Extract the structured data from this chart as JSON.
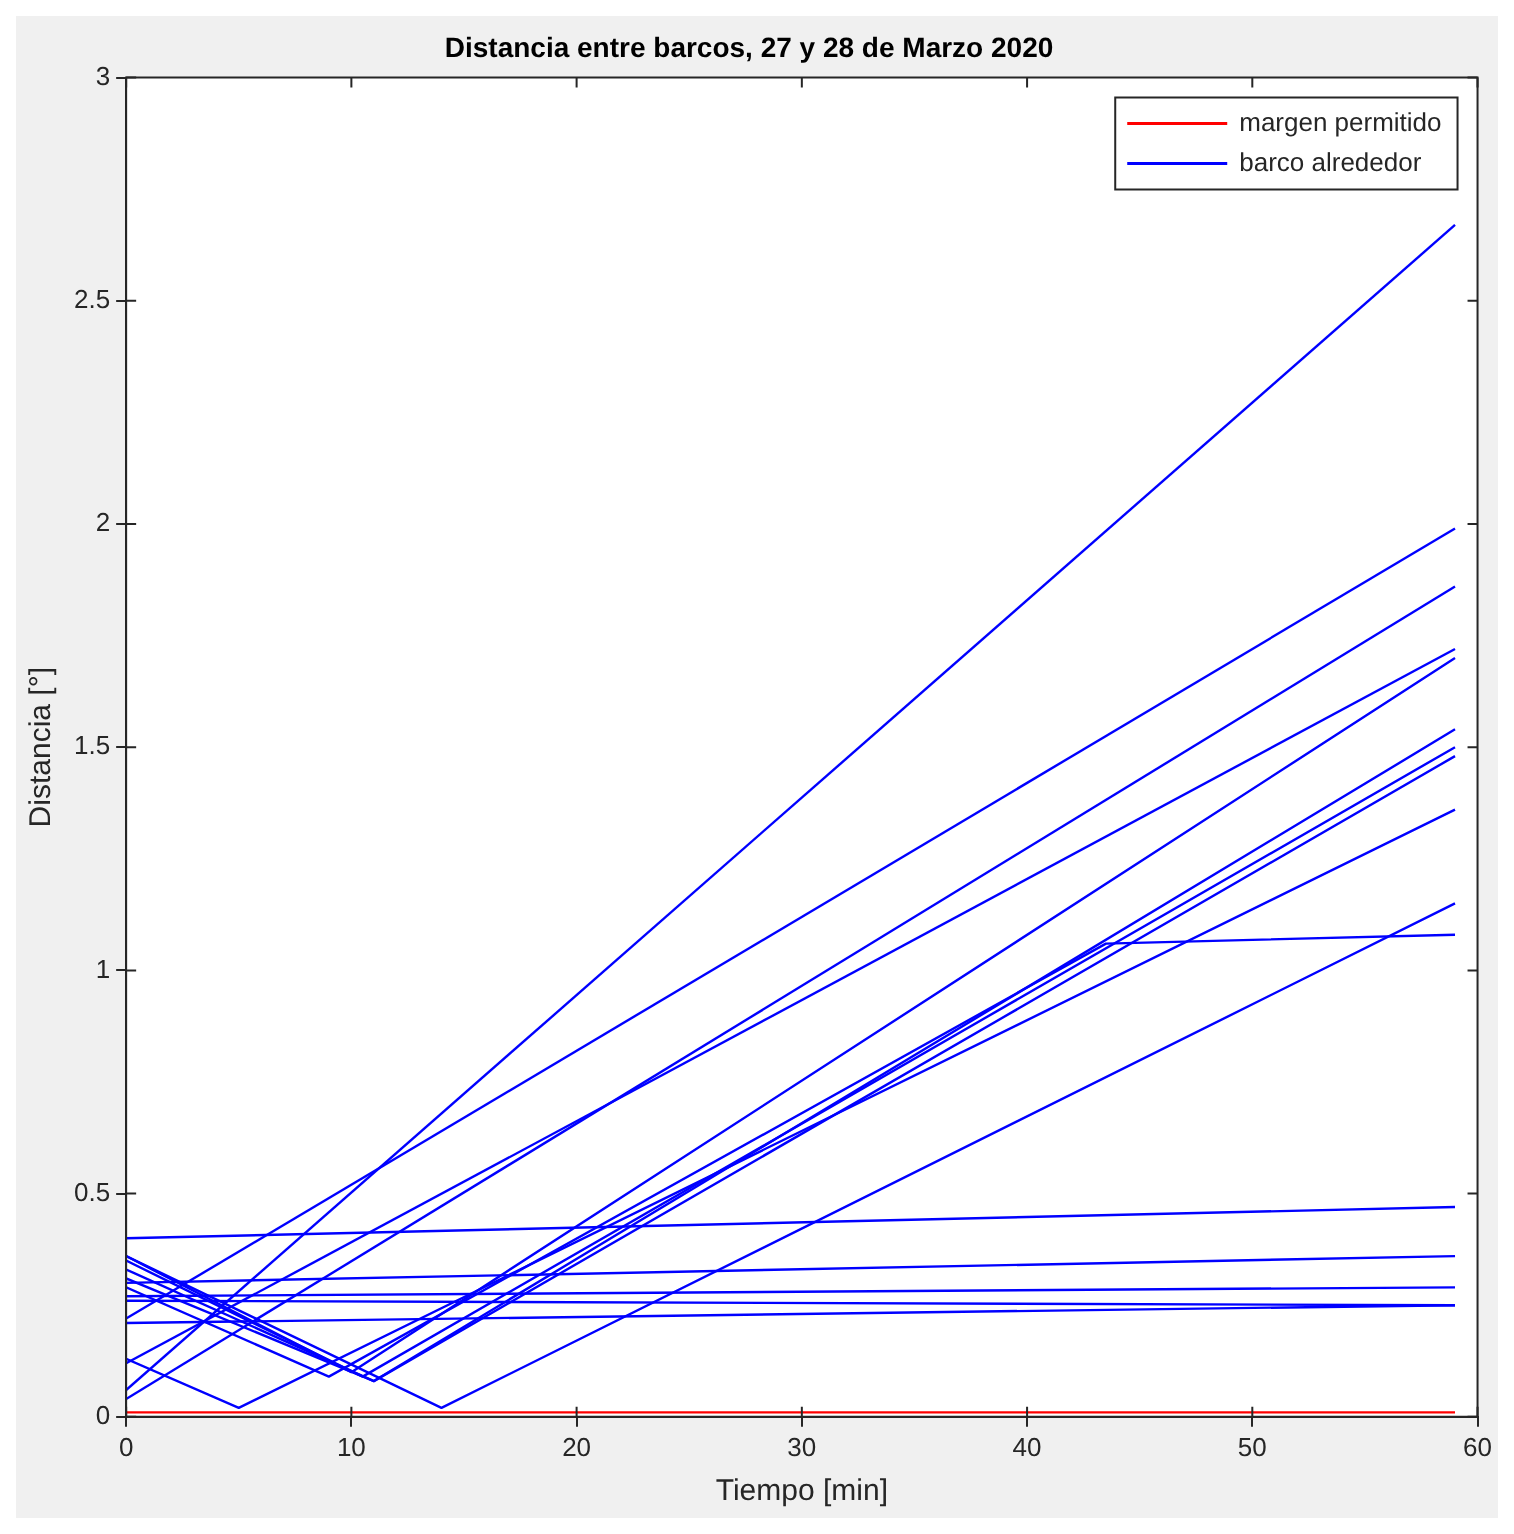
{
  "chart_data": {
    "type": "line",
    "title": "Distancia entre barcos, 27 y 28 de Marzo 2020",
    "xlabel": "Tiempo [min]",
    "ylabel": "Distancia [°]",
    "xlim": [
      0,
      60
    ],
    "xticks": [
      0,
      10,
      20,
      30,
      40,
      50,
      60
    ],
    "ylim": [
      0,
      3
    ],
    "yticks": [
      0,
      0.5,
      1,
      1.5,
      2,
      2.5,
      3
    ],
    "grid": false,
    "legend": "top right",
    "line_style": "solid",
    "marker": "none",
    "series": [
      {
        "name": "margen permitido",
        "color": "#ff0000",
        "x": [
          0,
          59
        ],
        "values": [
          0.01,
          0.01
        ]
      },
      {
        "name": "barco alrededor",
        "color": "#0000ff",
        "x": [
          0,
          59
        ],
        "values": [
          0.06,
          2.67
        ]
      },
      {
        "color": "#0000ff",
        "x": [
          0,
          59
        ],
        "values": [
          0.22,
          1.99
        ]
      },
      {
        "color": "#0000ff",
        "x": [
          0,
          59
        ],
        "values": [
          0.04,
          1.86
        ]
      },
      {
        "color": "#0000ff",
        "x": [
          0,
          59
        ],
        "values": [
          0.12,
          1.72
        ]
      },
      {
        "color": "#0000ff",
        "x": [
          0,
          10,
          59
        ],
        "values": [
          0.36,
          0.1,
          1.7
        ]
      },
      {
        "color": "#0000ff",
        "x": [
          0,
          11,
          59
        ],
        "values": [
          0.33,
          0.08,
          1.54
        ]
      },
      {
        "color": "#0000ff",
        "x": [
          0,
          10.5,
          59
        ],
        "values": [
          0.35,
          0.09,
          1.5
        ]
      },
      {
        "color": "#0000ff",
        "x": [
          0,
          11,
          59
        ],
        "values": [
          0.31,
          0.08,
          1.48
        ]
      },
      {
        "color": "#0000ff",
        "x": [
          0,
          5,
          59
        ],
        "values": [
          0.13,
          0.02,
          1.36
        ]
      },
      {
        "color": "#0000ff",
        "x": [
          0,
          14,
          59
        ],
        "values": [
          0.36,
          0.02,
          1.15
        ]
      },
      {
        "color": "#0000ff",
        "x": [
          0,
          9,
          43.5,
          59
        ],
        "values": [
          0.29,
          0.09,
          1.06,
          1.08
        ]
      },
      {
        "color": "#0000ff",
        "x": [
          0,
          59
        ],
        "values": [
          0.4,
          0.47
        ]
      },
      {
        "color": "#0000ff",
        "x": [
          0,
          59
        ],
        "values": [
          0.3,
          0.36
        ]
      },
      {
        "color": "#0000ff",
        "x": [
          0,
          59
        ],
        "values": [
          0.27,
          0.29
        ]
      },
      {
        "color": "#0000ff",
        "x": [
          0,
          59
        ],
        "values": [
          0.26,
          0.25
        ]
      },
      {
        "color": "#0000ff",
        "x": [
          0,
          59
        ],
        "values": [
          0.21,
          0.25
        ]
      }
    ]
  }
}
